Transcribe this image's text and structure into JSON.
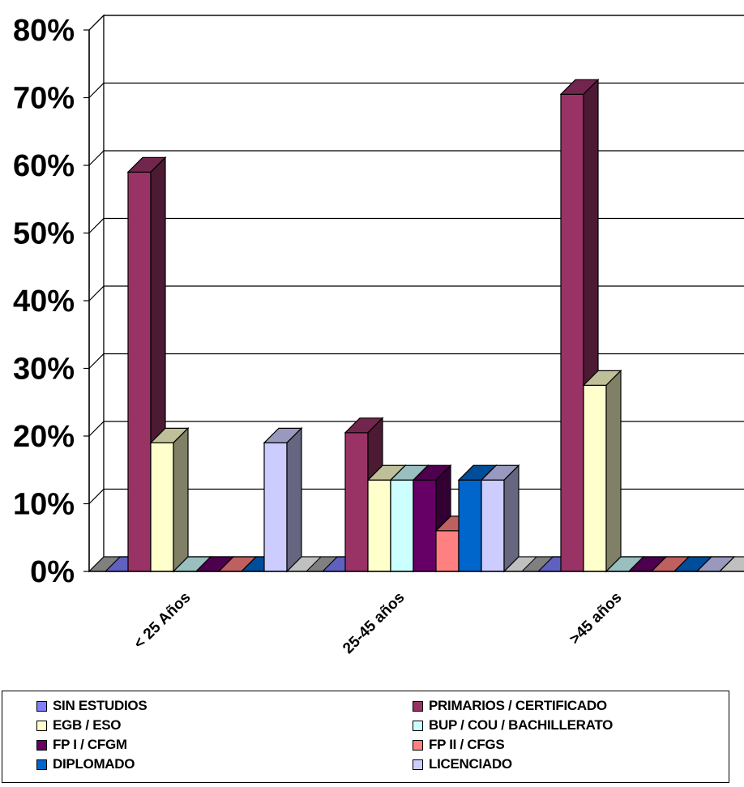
{
  "chart_data": {
    "type": "bar",
    "three_d": true,
    "categories": [
      "< 25 Años",
      "25-45 años",
      ">45 años"
    ],
    "y_ticks": [
      "0%",
      "10%",
      "20%",
      "30%",
      "40%",
      "50%",
      "60%",
      "70%",
      "80%"
    ],
    "ylim": [
      0,
      80
    ],
    "grid": true,
    "legend_position": "bottom",
    "series": [
      {
        "name": "SIN ESTUDIOS",
        "color": "#8080ff",
        "values": [
          0,
          0,
          0
        ]
      },
      {
        "name": "PRIMARIOS / CERTIFICADO",
        "color": "#993366",
        "values": [
          59,
          20.5,
          70.5
        ]
      },
      {
        "name": "EGB / ESO",
        "color": "#ffffcc",
        "values": [
          19,
          13.5,
          27.5
        ]
      },
      {
        "name": "BUP / COU / BACHILLERATO",
        "color": "#ccffff",
        "values": [
          0,
          13.5,
          0
        ]
      },
      {
        "name": "FP I / CFGM",
        "color": "#660066",
        "values": [
          0,
          13.5,
          0
        ]
      },
      {
        "name": "FP II / CFGS",
        "color": "#ff8080",
        "values": [
          0,
          6,
          0
        ]
      },
      {
        "name": "DIPLOMADO",
        "color": "#0066cc",
        "values": [
          0,
          13.5,
          0
        ]
      },
      {
        "name": "LICENCIADO",
        "color": "#ccccff",
        "values": [
          19,
          13.5,
          0
        ]
      }
    ]
  }
}
